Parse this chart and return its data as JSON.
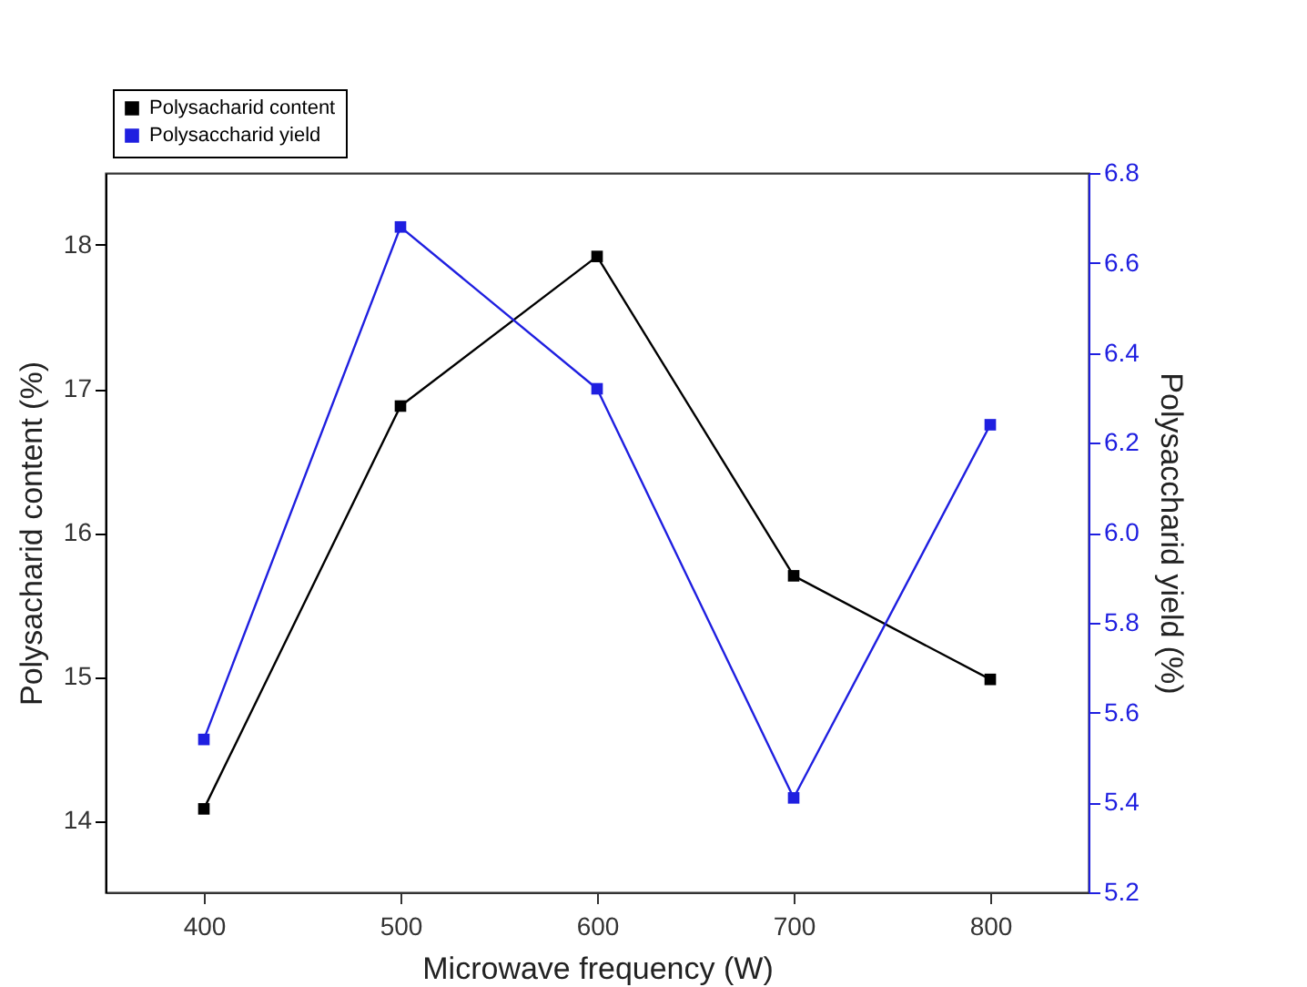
{
  "chart_data": {
    "type": "line",
    "xlabel": "Microwave frequency (W)",
    "ylabel": "Polysacharid content (%)",
    "y2label": "Polysaccharid yield (%)",
    "x": [
      400,
      500,
      600,
      700,
      800
    ],
    "series": [
      {
        "name": "Polysacharid content",
        "color": "#000000",
        "values": [
          14.08,
          16.88,
          17.92,
          15.7,
          14.98
        ]
      },
      {
        "name": "Polysaccharid yield",
        "color": "#1f1fe0",
        "axis": "y2",
        "values": [
          5.54,
          6.68,
          6.32,
          5.41,
          6.24
        ]
      }
    ],
    "xlim": [
      350,
      850
    ],
    "xticks": [
      400,
      500,
      600,
      700,
      800
    ],
    "ylim": [
      13.5,
      18.5
    ],
    "yticks": [
      14,
      15,
      16,
      17,
      18
    ],
    "y2lim": [
      5.2,
      6.8
    ],
    "y2ticks": [
      5.2,
      5.4,
      5.6,
      5.8,
      {
        "value": 6,
        "label": "6.0"
      },
      6.2,
      6.4,
      6.6,
      6.8
    ],
    "grid": false,
    "legend": "top left",
    "marker": "square",
    "line_style": "solid"
  }
}
